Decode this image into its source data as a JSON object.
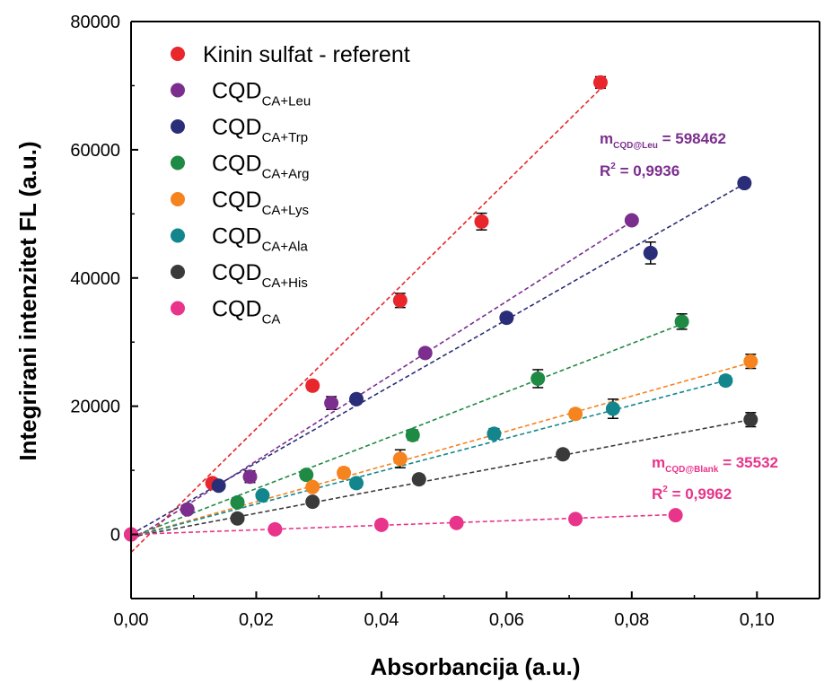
{
  "chart_data": {
    "type": "scatter",
    "title": "",
    "xlabel": "Absorbancija (a.u.)",
    "ylabel": "Integrirani intenzitet FL (a.u.)",
    "xlim": [
      0,
      0.11
    ],
    "ylim": [
      -10000,
      80000
    ],
    "x_ticks": [
      "0,00",
      "0,02",
      "0,04",
      "0,06",
      "0,08",
      "0,10"
    ],
    "y_ticks": [
      "0",
      "20000",
      "40000",
      "60000",
      "80000"
    ],
    "legend_position": "top-left",
    "series": [
      {
        "legend": "Kinin sulfat - referent",
        "legend_main": "",
        "legend_sub": "",
        "color": "#e8262b",
        "x": [
          0.0,
          0.013,
          0.029,
          0.043,
          0.056,
          0.075
        ],
        "y": [
          0,
          8000,
          23200,
          36500,
          48800,
          70500
        ],
        "err": [
          0,
          700,
          700,
          1100,
          1300,
          900
        ],
        "fit_x": [
          0.0,
          0.075
        ],
        "fit_y": [
          -2800,
          69500
        ]
      },
      {
        "legend": "",
        "legend_main": "CQD",
        "legend_sub": "CA+Leu",
        "color": "#7b2e8e",
        "x": [
          0.009,
          0.019,
          0.032,
          0.047,
          0.08
        ],
        "y": [
          3900,
          9000,
          20500,
          28300,
          49000
        ],
        "err": [
          500,
          900,
          1000,
          600,
          600
        ],
        "fit_x": [
          0.0,
          0.08
        ],
        "fit_y": [
          -1000,
          48800
        ]
      },
      {
        "legend": "",
        "legend_main": "CQD",
        "legend_sub": "CA+Trp",
        "color": "#2a2e78",
        "x": [
          0.014,
          0.036,
          0.06,
          0.083,
          0.098
        ],
        "y": [
          7600,
          21100,
          33800,
          43900,
          54800
        ],
        "err": [
          500,
          700,
          700,
          1700,
          700
        ],
        "fit_x": [
          0.0,
          0.098
        ],
        "fit_y": [
          0,
          54700
        ]
      },
      {
        "legend": "",
        "legend_main": "CQD",
        "legend_sub": "CA+Arg",
        "color": "#1f8a44",
        "x": [
          0.017,
          0.028,
          0.045,
          0.065,
          0.088
        ],
        "y": [
          5000,
          9300,
          15500,
          24300,
          33200
        ],
        "err": [
          500,
          700,
          800,
          1400,
          1200
        ],
        "fit_x": [
          0.0,
          0.088
        ],
        "fit_y": [
          -400,
          32800
        ]
      },
      {
        "legend": "",
        "legend_main": "CQD",
        "legend_sub": "CA+Lys",
        "color": "#f5841f",
        "x": [
          0.029,
          0.034,
          0.043,
          0.071,
          0.099
        ],
        "y": [
          7400,
          9600,
          11800,
          18800,
          27000
        ],
        "err": [
          500,
          700,
          1400,
          700,
          1100
        ],
        "fit_x": [
          0.0,
          0.099
        ],
        "fit_y": [
          -400,
          26800
        ]
      },
      {
        "legend": "",
        "legend_main": "CQD",
        "legend_sub": "CA+Ala",
        "color": "#12868c",
        "x": [
          0.021,
          0.036,
          0.058,
          0.077,
          0.095
        ],
        "y": [
          6100,
          8000,
          15700,
          19600,
          24000
        ],
        "err": [
          500,
          700,
          800,
          1500,
          700
        ],
        "fit_x": [
          0.0,
          0.095
        ],
        "fit_y": [
          -400,
          24000
        ]
      },
      {
        "legend": "",
        "legend_main": "CQD",
        "legend_sub": "CA+His",
        "color": "#3a3a3a",
        "x": [
          0.017,
          0.029,
          0.046,
          0.069,
          0.099
        ],
        "y": [
          2500,
          5100,
          8600,
          12500,
          17900
        ],
        "err": [
          500,
          500,
          700,
          700,
          1100
        ],
        "fit_x": [
          0.0,
          0.099
        ],
        "fit_y": [
          -400,
          17900
        ]
      },
      {
        "legend": "",
        "legend_main": "CQD",
        "legend_sub": "CA",
        "color": "#e8348a",
        "x": [
          0.0,
          0.023,
          0.04,
          0.052,
          0.071,
          0.087
        ],
        "y": [
          0,
          800,
          1500,
          1800,
          2400,
          3000
        ],
        "err": [
          300,
          300,
          300,
          300,
          300,
          300
        ],
        "fit_x": [
          0.0,
          0.087
        ],
        "fit_y": [
          0,
          3100
        ]
      }
    ],
    "annotations": [
      {
        "m_prefix": "m",
        "m_sub": "CQD@Leu",
        "m_value": " = 598462",
        "r_prefix": "R",
        "r_sup": "2",
        "r_value": " = 0,9936",
        "color": "#7b2e8e"
      },
      {
        "m_prefix": "m",
        "m_sub": "CQD@Blank",
        "m_value": " = 35532",
        "r_prefix": "R",
        "r_sup": "2",
        "r_value": " = 0,9962",
        "color": "#e8348a"
      }
    ]
  }
}
